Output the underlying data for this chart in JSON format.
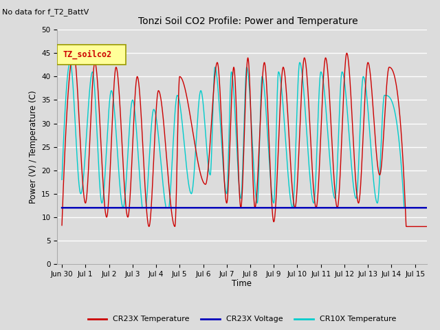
{
  "title": "Tonzi Soil CO2 Profile: Power and Temperature",
  "subtitle": "No data for f_T2_BattV",
  "ylabel": "Power (V) / Temperature (C)",
  "xlabel": "Time",
  "ylim": [
    0,
    50
  ],
  "yticks": [
    0,
    5,
    10,
    15,
    20,
    25,
    30,
    35,
    40,
    45,
    50
  ],
  "bg_color": "#dcdcdc",
  "plot_bg_color": "#dcdcdc",
  "legend_box_label": "TZ_soilco2",
  "legend_box_color": "#ffff99",
  "legend_box_border": "#999900",
  "cr23x_temp_color": "#cc0000",
  "cr23x_volt_color": "#0000bb",
  "cr10x_temp_color": "#00cccc",
  "voltage_value": 12.0,
  "x_tick_labels": [
    "Jun 30",
    "Jul 1",
    "Jul 2",
    "Jul 3",
    "Jul 4",
    "Jul 5",
    "Jul 6",
    "Jul 7",
    "Jul 8",
    "Jul 9",
    "Jul 10",
    "Jul 11",
    "Jul 12",
    "Jul 13",
    "Jul 14",
    "Jul 15"
  ],
  "x_tick_positions": [
    0,
    1,
    2,
    3,
    4,
    5,
    6,
    7,
    8,
    9,
    10,
    11,
    12,
    13,
    14,
    15
  ],
  "cr23x_peaks_x": [
    0.5,
    1.4,
    2.3,
    3.2,
    4.1,
    5.0,
    6.6,
    7.3,
    7.9,
    8.6,
    9.4,
    10.3,
    11.2,
    12.1,
    13.0,
    13.9
  ],
  "cr23x_peaks_y": [
    45,
    43,
    42,
    40,
    37,
    40,
    43,
    42,
    44,
    43,
    42,
    44,
    44,
    45,
    43,
    42
  ],
  "cr23x_troughs_x": [
    0.05,
    1.0,
    1.9,
    2.8,
    3.7,
    4.8,
    6.1,
    7.0,
    7.6,
    8.2,
    9.0,
    9.9,
    10.8,
    11.7,
    12.6,
    13.5,
    14.5
  ],
  "cr23x_troughs_y": [
    15,
    13,
    10,
    10,
    8,
    8,
    17,
    13,
    12,
    12,
    9,
    12,
    12,
    12,
    13,
    19,
    21
  ],
  "cr10x_peaks_x": [
    0.35,
    1.3,
    2.1,
    3.0,
    3.9,
    4.9,
    5.9,
    6.5,
    7.2,
    7.85,
    8.5,
    9.2,
    10.1,
    11.0,
    11.9,
    12.8,
    13.7
  ],
  "cr10x_peaks_y": [
    43,
    41,
    37,
    35,
    33,
    36,
    37,
    42,
    41,
    42,
    40,
    41,
    43,
    41,
    41,
    40,
    36
  ],
  "cr10x_troughs_x": [
    0.0,
    0.8,
    1.7,
    2.6,
    3.5,
    4.5,
    5.5,
    6.3,
    7.0,
    7.6,
    8.3,
    9.0,
    9.8,
    10.7,
    11.6,
    12.5,
    13.4,
    14.4
  ],
  "cr10x_troughs_y": [
    18,
    15,
    13,
    12,
    10,
    11,
    15,
    19,
    15,
    14,
    13,
    13,
    12,
    13,
    14,
    14,
    13,
    22
  ]
}
